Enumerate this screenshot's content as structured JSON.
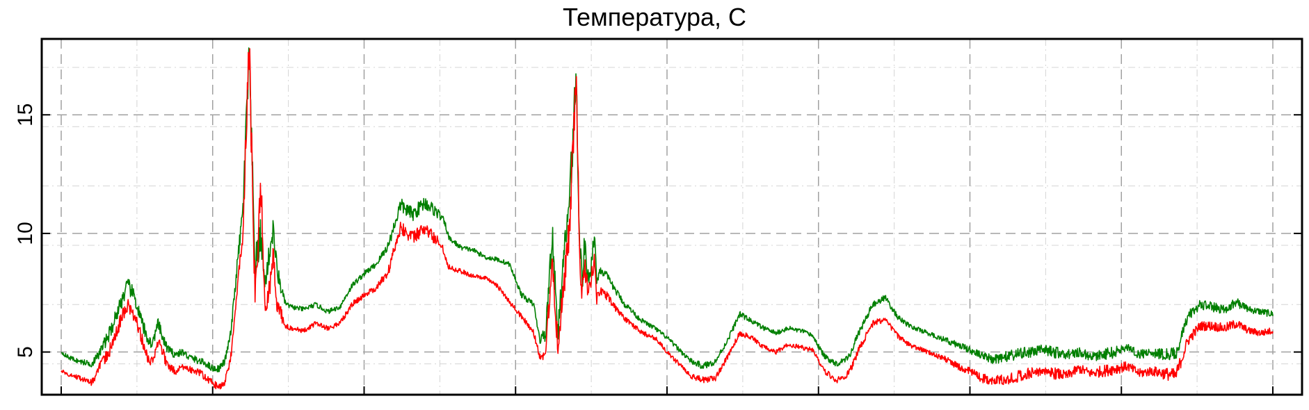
{
  "chart_data": {
    "type": "line",
    "title": "Температура, С",
    "xlabel": "",
    "ylabel": "",
    "xlim": [
      0,
      1000
    ],
    "ylim": [
      3.2,
      18.2
    ],
    "yticks": [
      5,
      10,
      15
    ],
    "ytick_labels": [
      "5",
      "10",
      "15"
    ],
    "grid": true,
    "legend": "none",
    "series": [
      {
        "color": "#007F00",
        "x": [
          0,
          5,
          15,
          25,
          30,
          40,
          50,
          55,
          60,
          65,
          70,
          75,
          80,
          85,
          90,
          95,
          100,
          105,
          110,
          115,
          120,
          125,
          130,
          135,
          140,
          145,
          150,
          155,
          160,
          165,
          168,
          172,
          175,
          178,
          180,
          182,
          184,
          186,
          190,
          200,
          210,
          220,
          230,
          240,
          250,
          260,
          270,
          280,
          290,
          300,
          310,
          315,
          318,
          320,
          325,
          330,
          340,
          350,
          360,
          370,
          380,
          390,
          395,
          400,
          405,
          410,
          415,
          420,
          425,
          428,
          430,
          432,
          435,
          437,
          440,
          442,
          445,
          450,
          455,
          460,
          465,
          470,
          475,
          480,
          490,
          500,
          510,
          520,
          530,
          540,
          550,
          560,
          570,
          580,
          590,
          600,
          610,
          620,
          630,
          640,
          650,
          660,
          670,
          680,
          690,
          700,
          710,
          720,
          730,
          740,
          750,
          760,
          770,
          780,
          790,
          800,
          810,
          820,
          830,
          840,
          850,
          860,
          870,
          880,
          890,
          900,
          910,
          920,
          930,
          940,
          950,
          960,
          970,
          980,
          990,
          1000
        ],
        "y": [
          5.0,
          4.8,
          4.6,
          4.5,
          4.8,
          5.8,
          7.2,
          7.8,
          7.4,
          6.5,
          5.7,
          5.3,
          6.2,
          5.4,
          5.0,
          4.9,
          5.0,
          4.8,
          4.7,
          4.6,
          4.5,
          4.3,
          4.3,
          4.6,
          5.8,
          8.5,
          11.0,
          17.5,
          8.5,
          10.0,
          7.8,
          9.2,
          10.2,
          8.5,
          8.0,
          7.6,
          7.2,
          7.0,
          6.9,
          6.8,
          7.0,
          6.7,
          6.9,
          7.8,
          8.3,
          8.7,
          9.5,
          11.2,
          10.8,
          11.3,
          10.9,
          10.6,
          10.2,
          9.8,
          9.6,
          9.4,
          9.3,
          9.0,
          8.9,
          8.7,
          7.4,
          7.0,
          5.5,
          5.8,
          10.0,
          5.8,
          9.0,
          11.8,
          16.7,
          9.5,
          8.0,
          9.5,
          8.0,
          8.5,
          10.0,
          8.0,
          8.5,
          8.2,
          7.8,
          7.4,
          7.0,
          6.8,
          6.5,
          6.3,
          6.0,
          5.6,
          5.1,
          4.6,
          4.4,
          4.6,
          5.5,
          6.6,
          6.3,
          6.0,
          5.8,
          6.0,
          5.9,
          5.7,
          4.8,
          4.5,
          4.8,
          6.0,
          7.0,
          7.3,
          6.5,
          6.1,
          5.9,
          5.7,
          5.5,
          5.3,
          5.1,
          4.8,
          4.7,
          4.8,
          4.9,
          5.0,
          5.1,
          5.0,
          4.9,
          5.0,
          4.8,
          4.9,
          5.0,
          5.2,
          4.9,
          5.0,
          4.9,
          4.9,
          6.5,
          7.0,
          6.9,
          6.8,
          7.1,
          6.8,
          6.7,
          6.6
        ],
        "noise": [
          0.05,
          0.1,
          0.1,
          0.15,
          0.2,
          0.3,
          0.35,
          0.35,
          0.3,
          0.3,
          0.3,
          0.2,
          0.25,
          0.25,
          0.2,
          0.15,
          0.15,
          0.15,
          0.15,
          0.15,
          0.15,
          0.15,
          0.15,
          0.15,
          0.2,
          0.3,
          0.5,
          1.2,
          0.8,
          0.8,
          0.4,
          0.5,
          0.5,
          0.4,
          0.35,
          0.3,
          0.15,
          0.12,
          0.1,
          0.1,
          0.1,
          0.1,
          0.1,
          0.12,
          0.12,
          0.12,
          0.2,
          0.3,
          0.3,
          0.3,
          0.25,
          0.15,
          0.15,
          0.12,
          0.12,
          0.1,
          0.1,
          0.1,
          0.1,
          0.1,
          0.12,
          0.12,
          0.15,
          0.4,
          0.8,
          0.5,
          0.7,
          0.8,
          1.2,
          0.6,
          0.6,
          0.6,
          0.4,
          0.4,
          0.4,
          0.25,
          0.2,
          0.2,
          0.15,
          0.15,
          0.12,
          0.12,
          0.1,
          0.1,
          0.1,
          0.1,
          0.1,
          0.12,
          0.15,
          0.12,
          0.12,
          0.12,
          0.1,
          0.1,
          0.1,
          0.1,
          0.1,
          0.1,
          0.12,
          0.12,
          0.15,
          0.15,
          0.15,
          0.12,
          0.12,
          0.1,
          0.1,
          0.1,
          0.12,
          0.15,
          0.15,
          0.2,
          0.2,
          0.25,
          0.25,
          0.25,
          0.2,
          0.25,
          0.2,
          0.2,
          0.2,
          0.25,
          0.25,
          0.2,
          0.2,
          0.2,
          0.25,
          0.3,
          0.25,
          0.2,
          0.2,
          0.2,
          0.2,
          0.15,
          0.15,
          0.15
        ]
      },
      {
        "color": "#FF0000",
        "x": [
          0,
          5,
          15,
          25,
          30,
          40,
          50,
          55,
          60,
          65,
          70,
          75,
          80,
          85,
          90,
          95,
          100,
          105,
          110,
          115,
          120,
          125,
          130,
          135,
          140,
          145,
          150,
          155,
          160,
          165,
          168,
          172,
          175,
          178,
          180,
          182,
          184,
          186,
          190,
          200,
          210,
          220,
          230,
          240,
          250,
          260,
          270,
          280,
          290,
          300,
          310,
          315,
          318,
          320,
          325,
          330,
          340,
          350,
          360,
          370,
          380,
          390,
          395,
          400,
          405,
          410,
          415,
          420,
          425,
          428,
          430,
          432,
          435,
          437,
          440,
          442,
          445,
          450,
          455,
          460,
          465,
          470,
          475,
          480,
          490,
          500,
          510,
          520,
          530,
          540,
          550,
          560,
          570,
          580,
          590,
          600,
          610,
          620,
          630,
          640,
          650,
          660,
          670,
          680,
          690,
          700,
          710,
          720,
          730,
          740,
          750,
          760,
          770,
          780,
          790,
          800,
          810,
          820,
          830,
          840,
          850,
          860,
          870,
          880,
          890,
          900,
          910,
          920,
          930,
          940,
          950,
          960,
          970,
          980,
          990,
          1000
        ],
        "y": [
          4.2,
          4.1,
          3.9,
          3.7,
          4.2,
          5.1,
          6.5,
          7.0,
          6.5,
          5.8,
          4.9,
          4.6,
          5.4,
          4.8,
          4.3,
          4.2,
          4.4,
          4.3,
          4.2,
          4.1,
          3.9,
          3.7,
          3.5,
          3.7,
          4.8,
          7.5,
          10.0,
          18.0,
          7.5,
          12.0,
          7.0,
          7.6,
          9.0,
          7.0,
          6.8,
          6.5,
          6.2,
          6.1,
          6.0,
          5.9,
          6.2,
          6.0,
          6.2,
          7.0,
          7.4,
          7.7,
          8.4,
          10.3,
          9.8,
          10.2,
          9.7,
          9.4,
          8.8,
          8.6,
          8.5,
          8.4,
          8.2,
          8.1,
          7.8,
          7.1,
          6.5,
          5.8,
          4.8,
          5.0,
          9.0,
          5.2,
          8.0,
          10.5,
          16.8,
          8.5,
          7.5,
          8.5,
          7.5,
          8.0,
          9.0,
          7.2,
          7.6,
          7.4,
          7.0,
          6.7,
          6.4,
          6.2,
          6.0,
          5.8,
          5.6,
          5.0,
          4.5,
          4.0,
          3.8,
          3.9,
          4.8,
          5.8,
          5.6,
          5.2,
          5.0,
          5.3,
          5.2,
          5.1,
          4.2,
          3.8,
          4.1,
          5.3,
          6.2,
          6.4,
          5.7,
          5.3,
          5.1,
          4.9,
          4.7,
          4.4,
          4.2,
          3.9,
          3.8,
          3.8,
          4.0,
          4.1,
          4.2,
          4.1,
          4.0,
          4.3,
          4.1,
          4.2,
          4.3,
          4.4,
          4.1,
          4.2,
          4.1,
          4.0,
          5.5,
          6.1,
          6.1,
          6.0,
          6.2,
          5.9,
          5.8,
          5.9
        ],
        "noise": [
          0.05,
          0.1,
          0.1,
          0.15,
          0.2,
          0.3,
          0.35,
          0.35,
          0.3,
          0.3,
          0.3,
          0.2,
          0.25,
          0.25,
          0.2,
          0.15,
          0.15,
          0.15,
          0.15,
          0.15,
          0.15,
          0.15,
          0.15,
          0.15,
          0.2,
          0.3,
          0.5,
          1.2,
          0.8,
          0.8,
          0.4,
          0.5,
          0.5,
          0.4,
          0.35,
          0.3,
          0.15,
          0.12,
          0.1,
          0.1,
          0.1,
          0.1,
          0.1,
          0.12,
          0.12,
          0.12,
          0.2,
          0.3,
          0.3,
          0.3,
          0.25,
          0.15,
          0.15,
          0.12,
          0.12,
          0.1,
          0.1,
          0.1,
          0.1,
          0.1,
          0.12,
          0.12,
          0.15,
          0.4,
          0.8,
          0.5,
          0.7,
          0.8,
          1.2,
          0.6,
          0.6,
          0.6,
          0.4,
          0.4,
          0.4,
          0.25,
          0.2,
          0.2,
          0.15,
          0.15,
          0.12,
          0.12,
          0.1,
          0.1,
          0.1,
          0.1,
          0.1,
          0.12,
          0.15,
          0.12,
          0.12,
          0.12,
          0.1,
          0.1,
          0.1,
          0.1,
          0.1,
          0.1,
          0.12,
          0.12,
          0.15,
          0.15,
          0.15,
          0.12,
          0.12,
          0.1,
          0.1,
          0.1,
          0.12,
          0.15,
          0.15,
          0.2,
          0.2,
          0.25,
          0.25,
          0.25,
          0.2,
          0.25,
          0.2,
          0.2,
          0.2,
          0.25,
          0.25,
          0.2,
          0.2,
          0.2,
          0.25,
          0.3,
          0.25,
          0.2,
          0.2,
          0.2,
          0.2,
          0.15,
          0.15,
          0.15
        ]
      }
    ]
  }
}
